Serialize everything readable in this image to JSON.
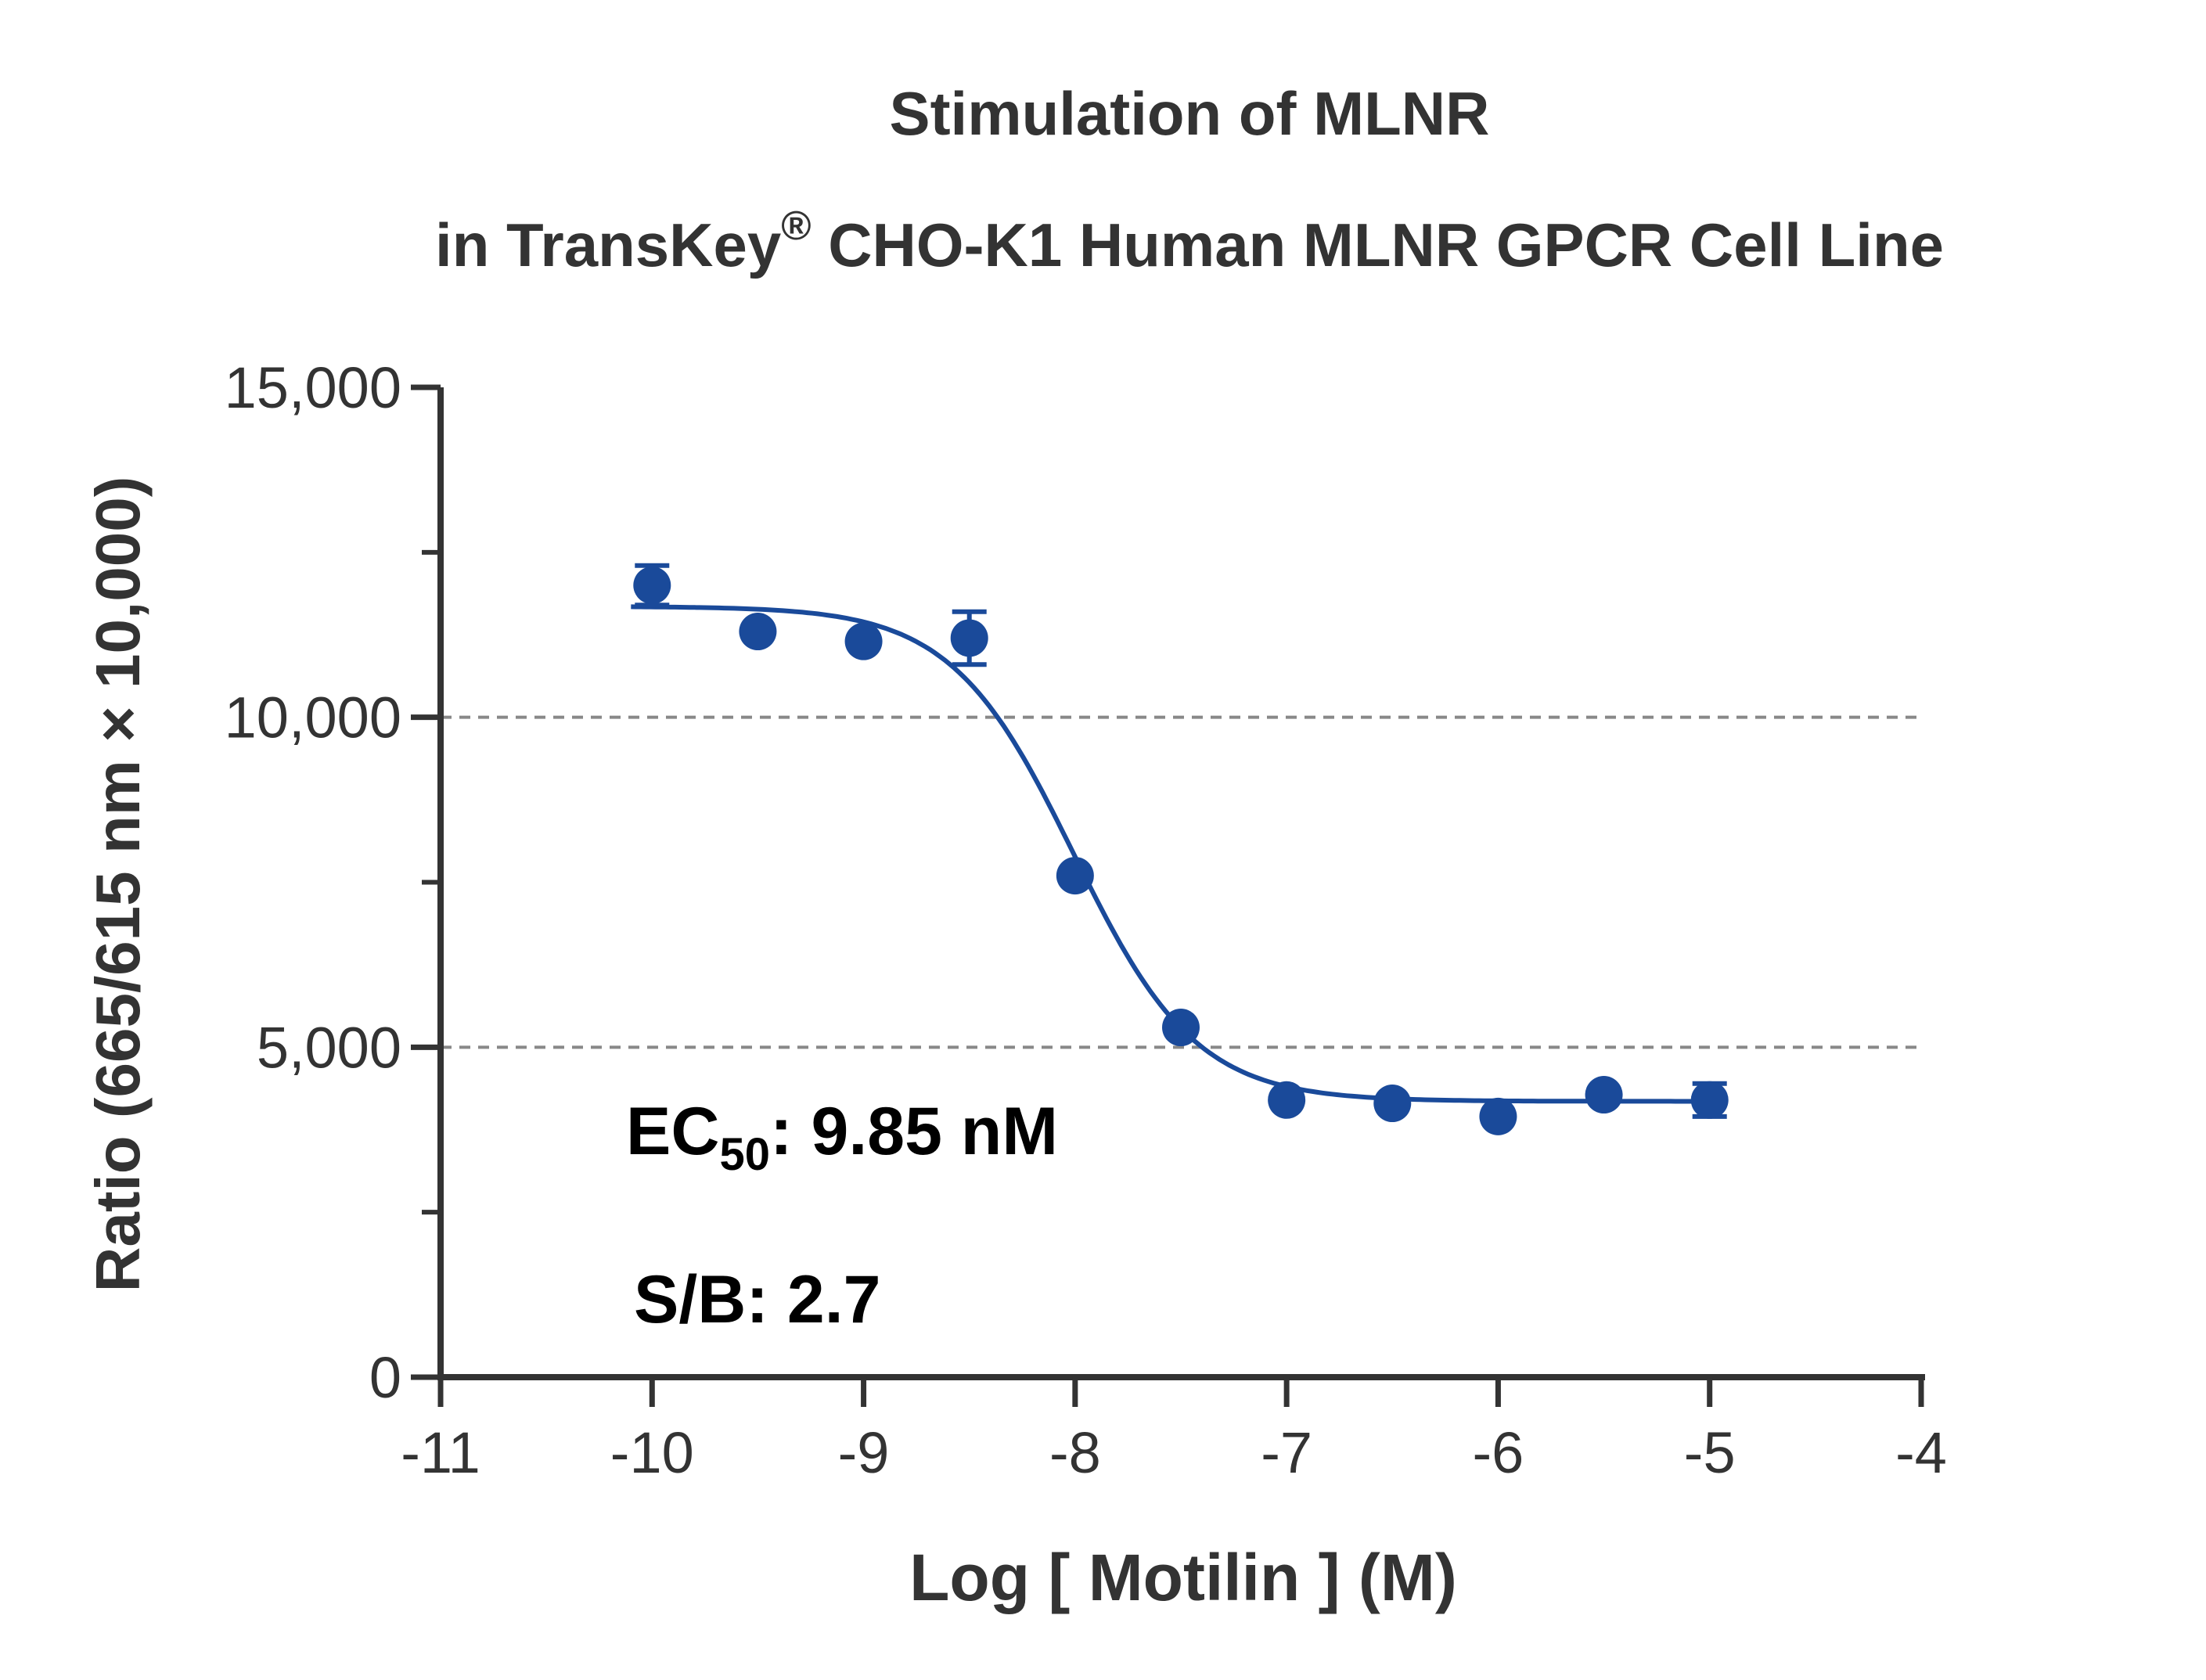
{
  "chart_data": {
    "type": "scatter",
    "title_line1": "Stimulation of  MLNR",
    "title_line2_pre": "in TransKey",
    "title_line2_sup": "®",
    "title_line2_post": " CHO-K1 Human MLNR GPCR Cell Line",
    "xlabel": "Log [ Motilin ]  (M)",
    "ylabel": "Ratio (665/615 nm × 10,000)",
    "xlim": [
      -11,
      -4
    ],
    "ylim": [
      0,
      15000
    ],
    "x_ticks": [
      -11,
      -10,
      -9,
      -8,
      -7,
      -6,
      -5,
      -4
    ],
    "x_tick_labels": [
      "-11",
      "-10",
      "-9",
      "-8",
      "-7",
      "-6",
      "-5",
      "-4"
    ],
    "y_ticks": [
      0,
      5000,
      10000,
      15000
    ],
    "y_tick_labels": [
      "0",
      "5,000",
      "10,000",
      "15,000"
    ],
    "y_minor_ticks": [
      2500,
      7500,
      12500
    ],
    "gridlines_y": [
      5000,
      10000
    ],
    "series": [
      {
        "points": [
          {
            "x": -10,
            "y": 12000,
            "err": 300
          },
          {
            "x": -9.5,
            "y": 11300,
            "err": 0
          },
          {
            "x": -9,
            "y": 11150,
            "err": 0
          },
          {
            "x": -8.5,
            "y": 11200,
            "err": 400
          },
          {
            "x": -8,
            "y": 7600,
            "err": 0
          },
          {
            "x": -7.5,
            "y": 5300,
            "err": 0
          },
          {
            "x": -7,
            "y": 4200,
            "err": 0
          },
          {
            "x": -6.5,
            "y": 4150,
            "err": 0
          },
          {
            "x": -6,
            "y": 3950,
            "err": 0
          },
          {
            "x": -5.5,
            "y": 4280,
            "err": 0
          },
          {
            "x": -5,
            "y": 4200,
            "err": 250
          }
        ],
        "fit": {
          "top": 11680,
          "bottom": 4180,
          "logEC50": -8.0066,
          "hill": -1.5,
          "x_range": [
            -10.1,
            -5
          ]
        }
      }
    ],
    "annotations": {
      "ec50_prefix": "EC",
      "ec50_sub": "50",
      "ec50_value": ": 9.85 nM",
      "sb": "S/B: 2.7"
    },
    "colors": {
      "series": "#1a4a9a",
      "axis": "#333333",
      "grid": "#888888"
    }
  }
}
